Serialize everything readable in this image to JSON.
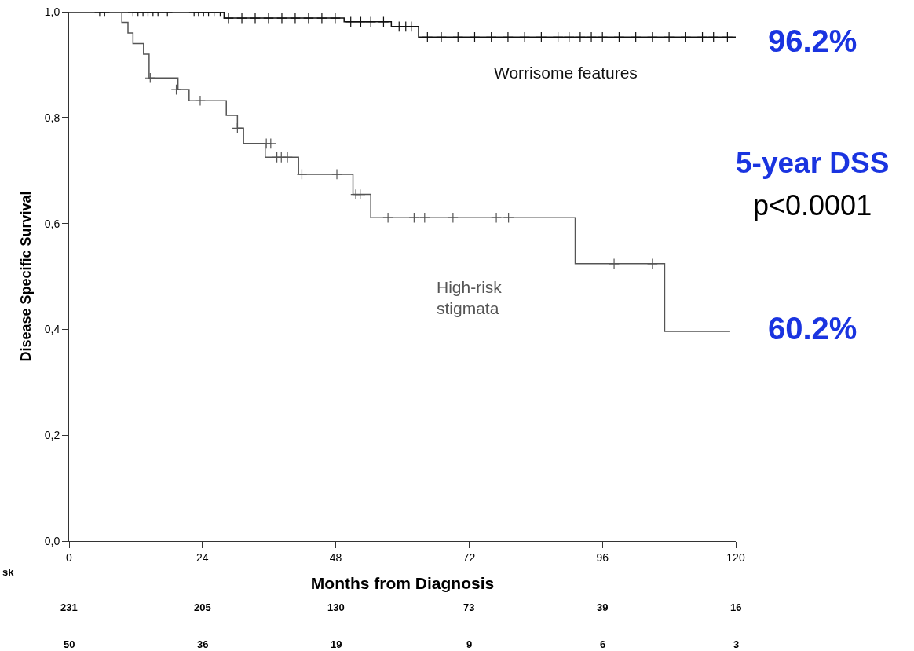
{
  "chart_data": {
    "type": "step",
    "xlabel": "Months from Diagnosis",
    "ylabel": "Disease Specific Survival",
    "xlim": [
      0,
      120
    ],
    "xticks": [
      0,
      24,
      48,
      72,
      96,
      120
    ],
    "ylim": [
      0,
      1
    ],
    "yticks": [
      {
        "value": 0,
        "label": "0,0"
      },
      {
        "value": 0.2,
        "label": "0,2"
      },
      {
        "value": 0.4,
        "label": "0,4"
      },
      {
        "value": 0.6,
        "label": "0,6"
      },
      {
        "value": 0.8,
        "label": "0,8"
      },
      {
        "value": 1,
        "label": "1,0"
      }
    ],
    "grid": false,
    "line_style": "solid",
    "marker": "none",
    "series": [
      {
        "name": "Worrisome features",
        "color": "#111111",
        "x": [
          0,
          27.9,
          49.5,
          58,
          62.9,
          120
        ],
        "values": [
          1,
          0.988,
          0.981,
          0.972,
          0.952,
          0.952
        ]
      },
      {
        "name": "High-risk stigmata",
        "color": "#555555",
        "x": [
          0,
          9.5,
          10.6,
          11.5,
          13.4,
          14.4,
          19.6,
          21.6,
          28.3,
          30.3,
          31.4,
          35.3,
          41.3,
          51.1,
          54.3,
          91.1,
          107.2,
          119
        ],
        "values": [
          1,
          0.98,
          0.96,
          0.94,
          0.92,
          0.875,
          0.853,
          0.832,
          0.804,
          0.78,
          0.751,
          0.725,
          0.693,
          0.655,
          0.611,
          0.524,
          0.396,
          0.396
        ]
      },
      {
        "type": "scatter",
        "marker": "cross",
        "color": "#111111",
        "x": [
          5.5,
          6.4,
          11.5,
          12.4,
          13.3,
          14.2,
          15.1,
          16.0,
          17.7,
          22.5,
          23.3,
          24.2,
          25.1,
          26.1,
          27.2,
          28.7,
          31.1,
          33.5,
          35.9,
          38.3,
          40.7,
          43.1,
          45.5,
          47.9,
          50.7,
          52.5,
          54.3,
          56.6,
          59.4,
          60.6,
          61.6,
          64.5,
          67.0,
          70.0,
          73.0,
          76.0,
          79.0,
          82.0,
          85.0,
          88.0,
          90.0,
          92.0,
          94.0,
          96.0,
          99.0,
          102.0,
          105.0,
          108.0,
          111.0,
          114.0,
          116.0,
          118.5
        ],
        "values": [
          1,
          1,
          1,
          1,
          1,
          1,
          1,
          1,
          1,
          1,
          1,
          1,
          1,
          1,
          1,
          0.988,
          0.988,
          0.988,
          0.988,
          0.988,
          0.988,
          0.988,
          0.988,
          0.988,
          0.981,
          0.981,
          0.981,
          0.981,
          0.972,
          0.972,
          0.972,
          0.952,
          0.952,
          0.952,
          0.952,
          0.952,
          0.952,
          0.952,
          0.952,
          0.952,
          0.952,
          0.952,
          0.952,
          0.952,
          0.952,
          0.952,
          0.952,
          0.952,
          0.952,
          0.952,
          0.952,
          0.952
        ]
      },
      {
        "type": "scatter",
        "marker": "cross",
        "color": "#555555",
        "x": [
          14.6,
          19.3,
          23.6,
          30.3,
          35.5,
          36.3,
          37.4,
          38.2,
          39.3,
          41.9,
          48.2,
          51.6,
          52.4,
          57.4,
          62.1,
          64.0,
          69.1,
          76.9,
          79.1,
          98.1,
          105.0
        ],
        "values": [
          0.875,
          0.853,
          0.832,
          0.78,
          0.751,
          0.751,
          0.725,
          0.725,
          0.725,
          0.693,
          0.693,
          0.655,
          0.655,
          0.611,
          0.611,
          0.611,
          0.611,
          0.611,
          0.611,
          0.524,
          0.524
        ]
      }
    ],
    "annotations": [
      "96.2%",
      "5-year DSS",
      "p<0.0001",
      "60.2%",
      "sk",
      "231",
      "205",
      "130",
      "73",
      "39",
      "16",
      "50",
      "36",
      "19",
      "9",
      "6",
      "3"
    ]
  }
}
